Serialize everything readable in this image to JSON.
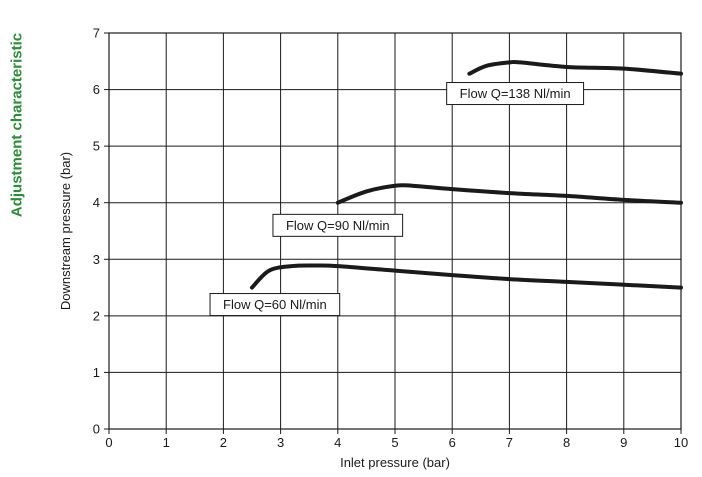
{
  "side_title": "Adjustment characteristic",
  "chart_data": {
    "type": "line",
    "title": "",
    "xlabel": "Inlet pressure (bar)",
    "ylabel": "Downstream pressure (bar)",
    "xlim": [
      0,
      10
    ],
    "ylim": [
      0,
      7
    ],
    "xticks": [
      "0",
      "1",
      "2",
      "3",
      "4",
      "5",
      "6",
      "7",
      "8",
      "9",
      "10"
    ],
    "yticks": [
      "0",
      "1",
      "2",
      "3",
      "4",
      "5",
      "6",
      "7"
    ],
    "grid": true,
    "series_color": "#1a1a1a",
    "series": [
      {
        "label": "Flow Q=60 Nl/min",
        "label_at": [
          2.9,
          2.2
        ],
        "x": [
          2.5,
          2.8,
          3.2,
          3.6,
          4.0,
          5.0,
          6.0,
          7.0,
          8.0,
          9.0,
          10.0
        ],
        "y": [
          2.5,
          2.8,
          2.88,
          2.89,
          2.88,
          2.8,
          2.72,
          2.65,
          2.6,
          2.55,
          2.5
        ]
      },
      {
        "label": "Flow Q=90 Nl/min",
        "label_at": [
          4.0,
          3.6
        ],
        "x": [
          4.0,
          4.5,
          5.0,
          5.3,
          6.0,
          7.0,
          8.0,
          9.0,
          10.0
        ],
        "y": [
          4.0,
          4.2,
          4.3,
          4.3,
          4.24,
          4.17,
          4.12,
          4.05,
          4.0
        ]
      },
      {
        "label": "Flow Q=138 Nl/min",
        "label_at": [
          7.1,
          5.93
        ],
        "x": [
          6.3,
          6.6,
          7.0,
          7.2,
          8.0,
          9.0,
          10.0
        ],
        "y": [
          6.28,
          6.42,
          6.48,
          6.48,
          6.4,
          6.37,
          6.28
        ]
      }
    ]
  }
}
